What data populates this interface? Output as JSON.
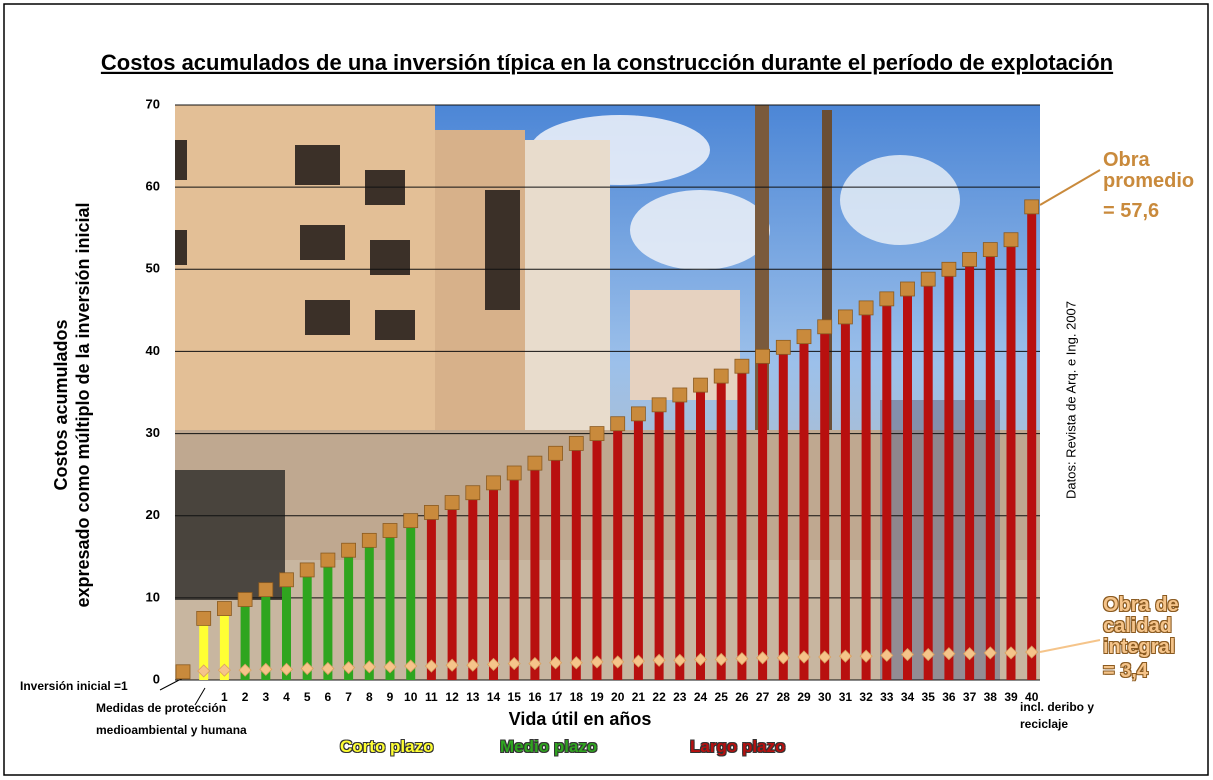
{
  "chart_data": {
    "type": "bar",
    "title": "Costos acumulados de una inversión típica en la construcción durante el período de explotación",
    "ylabel": [
      "Costos acumulados",
      "expresado como múltiplo de la inversión inicial"
    ],
    "xlabel": "Vida útil en años",
    "categories": [
      null,
      null,
      "1",
      "2",
      "3",
      "4",
      "5",
      "6",
      "7",
      "8",
      "9",
      "10",
      "11",
      "12",
      "13",
      "14",
      "15",
      "16",
      "17",
      "18",
      "19",
      "20",
      "21",
      "22",
      "23",
      "24",
      "25",
      "26",
      "27",
      "28",
      "29",
      "30",
      "31",
      "32",
      "33",
      "34",
      "35",
      "36",
      "37",
      "38",
      "39",
      "40"
    ],
    "bar_colors": [
      null,
      "#ffff33",
      "#ffff33",
      "#2fa51f",
      "#2fa51f",
      "#2fa51f",
      "#2fa51f",
      "#2fa51f",
      "#2fa51f",
      "#2fa51f",
      "#2fa51f",
      "#2fa51f",
      "#b8100f",
      "#b8100f",
      "#b8100f",
      "#b8100f",
      "#b8100f",
      "#b8100f",
      "#b8100f",
      "#b8100f",
      "#b8100f",
      "#b8100f",
      "#b8100f",
      "#b8100f",
      "#b8100f",
      "#b8100f",
      "#b8100f",
      "#b8100f",
      "#b8100f",
      "#b8100f",
      "#b8100f",
      "#b8100f",
      "#b8100f",
      "#b8100f",
      "#b8100f",
      "#b8100f",
      "#b8100f",
      "#b8100f",
      "#b8100f",
      "#b8100f",
      "#b8100f",
      "#b8100f"
    ],
    "series": [
      {
        "name": "Obra promedio",
        "color": "#c98a3c",
        "values": [
          1,
          7.5,
          8.7,
          9.8,
          11.0,
          12.2,
          13.4,
          14.6,
          15.8,
          17.0,
          18.2,
          19.4,
          20.4,
          21.6,
          22.8,
          24.0,
          25.2,
          26.4,
          27.6,
          28.8,
          30.0,
          31.2,
          32.4,
          33.5,
          34.7,
          35.9,
          37.0,
          38.2,
          39.4,
          40.5,
          41.8,
          43.0,
          44.2,
          45.3,
          46.4,
          47.6,
          48.8,
          50.0,
          51.2,
          52.4,
          53.6,
          57.6
        ],
        "value_labels": [
          null,
          null,
          null,
          null,
          null,
          null,
          null,
          null,
          null,
          null,
          null,
          null,
          null,
          null,
          null,
          null,
          null,
          null,
          null,
          null,
          null,
          null,
          null,
          null,
          null,
          null,
          null,
          null,
          null,
          null,
          null,
          null,
          null,
          null,
          null,
          null,
          null,
          null,
          null,
          null,
          null,
          "= 57,6"
        ]
      },
      {
        "name": "Obra de calidad integral",
        "color": "#f5c48a",
        "values": [
          null,
          1.1,
          1.2,
          1.2,
          1.3,
          1.3,
          1.4,
          1.4,
          1.5,
          1.6,
          1.6,
          1.7,
          1.7,
          1.8,
          1.8,
          1.9,
          2.0,
          2.0,
          2.1,
          2.1,
          2.2,
          2.2,
          2.3,
          2.4,
          2.4,
          2.5,
          2.5,
          2.6,
          2.7,
          2.7,
          2.8,
          2.8,
          2.9,
          2.9,
          3.0,
          3.1,
          3.1,
          3.2,
          3.2,
          3.3,
          3.3,
          3.4
        ],
        "value_labels": [
          null,
          null,
          null,
          null,
          null,
          null,
          null,
          null,
          null,
          null,
          null,
          null,
          null,
          null,
          null,
          null,
          null,
          null,
          null,
          null,
          null,
          null,
          null,
          null,
          null,
          null,
          null,
          null,
          null,
          null,
          null,
          null,
          null,
          null,
          null,
          null,
          null,
          null,
          null,
          null,
          null,
          "= 3,4"
        ]
      }
    ],
    "periods": [
      {
        "name": "Corto plazo",
        "color": "#ffff33"
      },
      {
        "name": "Medio plazo",
        "color": "#2fa51f"
      },
      {
        "name": "Largo plazo",
        "color": "#b8100f"
      }
    ],
    "annotations": [
      "Inversión inicial =1",
      "Medidas de protección medioambiental y humana",
      "incl. deribo y reciclaje",
      "Datos: Revista de Arq. e Ing. 2007"
    ],
    "ylim": [
      0,
      70
    ],
    "yticks": [
      0,
      10,
      20,
      30,
      40,
      50,
      60,
      70
    ],
    "grid": true
  }
}
